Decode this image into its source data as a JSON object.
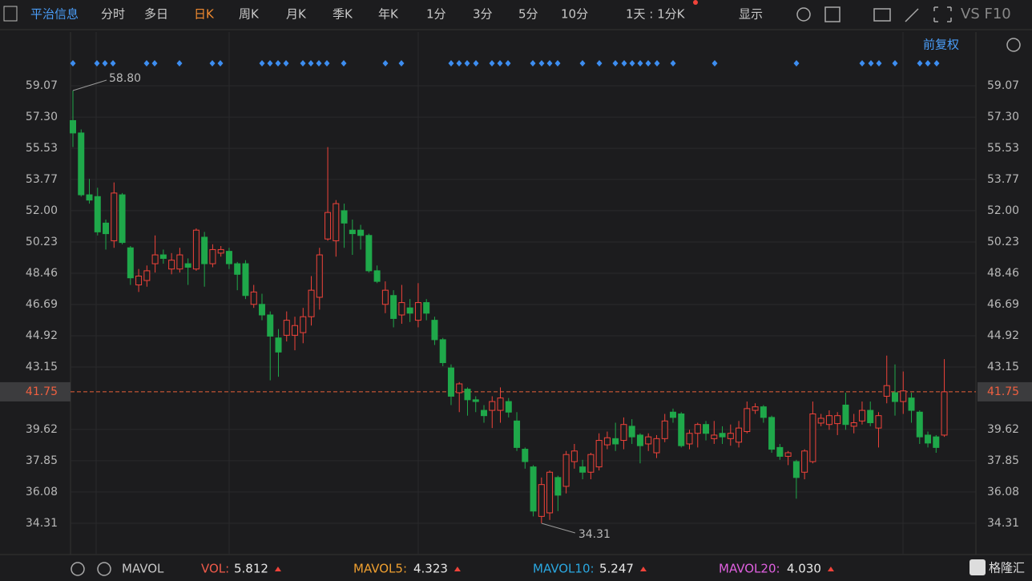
{
  "toolbar": {
    "stock": "平治信息",
    "tabs": [
      "分时",
      "多日",
      "日K",
      "周K",
      "月K",
      "季K",
      "年K",
      "1分",
      "3分",
      "5分",
      "10分"
    ],
    "active_tab": 2,
    "period": "1天 : 1分K",
    "display": "显示",
    "extras": "VS F10",
    "adjust": "前复权"
  },
  "chart_data": {
    "type": "candlestick",
    "open": [
      57.1,
      56.4,
      52.9,
      52.8,
      51.3,
      50.3,
      52.9,
      49.9,
      47.8,
      48.05,
      49.0,
      49.5,
      48.7,
      48.7,
      49.0,
      48.7,
      50.5,
      49.0,
      49.6,
      49.7,
      49.0,
      49.0,
      46.7,
      46.7,
      46.1,
      44.8,
      44.95,
      44.95,
      45.1,
      46.0,
      47.1,
      50.4,
      50.3,
      52.0,
      50.9,
      50.9,
      50.6,
      48.6,
      46.7,
      47.2,
      46.1,
      46.5,
      45.8,
      46.8,
      45.8,
      44.7,
      43.1,
      41.7,
      41.9,
      41.3,
      40.7,
      40.7,
      40.7,
      41.2,
      40.1,
      38.5,
      37.5,
      34.7,
      34.9,
      36.9,
      36.4,
      37.8,
      37.5,
      37.2,
      37.5,
      38.75,
      39.1,
      39.0,
      39.8,
      39.3,
      38.8,
      38.3,
      39.1,
      40.6,
      40.5,
      38.8,
      39.4,
      39.9,
      39.1,
      39.4,
      39.1,
      38.9,
      39.5,
      40.7,
      40.9,
      40.3,
      38.6,
      38.1,
      37.8,
      37.2,
      37.8,
      39.98,
      39.9,
      39.95,
      41.0,
      39.8,
      40.1,
      40.7,
      39.7,
      41.5,
      41.7,
      41.2,
      41.4,
      40.6,
      39.3,
      39.2,
      39.3
    ],
    "high": [
      58.8,
      56.6,
      53.8,
      53.3,
      51.5,
      53.6,
      53.0,
      50.0,
      48.7,
      48.9,
      50.6,
      49.8,
      49.6,
      49.9,
      49.3,
      51.0,
      50.8,
      50.1,
      50.0,
      49.9,
      49.1,
      49.2,
      47.8,
      47.3,
      46.3,
      45.3,
      46.3,
      46.0,
      46.5,
      48.3,
      49.9,
      55.6,
      52.6,
      52.4,
      51.5,
      51.2,
      50.7,
      48.9,
      48.0,
      47.5,
      47.8,
      47.0,
      47.9,
      47.0,
      46.0,
      44.8,
      43.3,
      42.3,
      42.0,
      41.5,
      41.0,
      41.5,
      42.0,
      41.4,
      40.6,
      38.6,
      37.6,
      36.9,
      37.3,
      37.0,
      38.4,
      38.8,
      37.9,
      38.3,
      39.4,
      39.5,
      40.0,
      40.3,
      40.2,
      39.4,
      39.4,
      39.3,
      40.5,
      40.8,
      40.6,
      39.6,
      40.0,
      40.1,
      40.1,
      39.8,
      39.9,
      40.1,
      41.2,
      41.1,
      41.0,
      40.4,
      38.8,
      38.4,
      37.9,
      38.5,
      41.2,
      40.5,
      40.7,
      40.6,
      41.7,
      40.5,
      41.2,
      41.2,
      40.6,
      43.8,
      43.3,
      42.9,
      41.7,
      40.7,
      39.5,
      39.3,
      43.6
    ],
    "low": [
      55.6,
      52.8,
      52.4,
      50.6,
      49.8,
      49.9,
      50.1,
      47.8,
      47.4,
      47.7,
      48.5,
      49.0,
      48.4,
      48.5,
      47.8,
      48.6,
      47.7,
      48.8,
      49.4,
      48.7,
      47.5,
      47.0,
      46.5,
      45.8,
      42.4,
      42.6,
      44.6,
      44.1,
      44.5,
      45.5,
      46.4,
      50.3,
      49.4,
      49.9,
      49.5,
      49.8,
      48.5,
      47.9,
      46.2,
      45.4,
      45.6,
      45.7,
      45.4,
      45.8,
      44.4,
      43.2,
      41.0,
      40.6,
      40.4,
      40.6,
      40.0,
      39.7,
      40.0,
      40.3,
      38.4,
      37.4,
      34.7,
      34.31,
      34.5,
      35.0,
      36.0,
      37.4,
      36.8,
      36.8,
      37.3,
      38.5,
      38.4,
      38.5,
      38.8,
      37.7,
      38.4,
      38.0,
      38.9,
      40.0,
      38.6,
      38.5,
      38.6,
      39.0,
      38.8,
      38.8,
      38.7,
      38.6,
      39.4,
      40.5,
      40.0,
      38.3,
      37.9,
      37.6,
      35.7,
      36.8,
      37.7,
      39.8,
      39.6,
      39.3,
      39.6,
      39.4,
      39.9,
      39.8,
      38.6,
      41.1,
      40.4,
      40.5,
      40.0,
      38.8,
      38.6,
      38.3,
      39.2
    ],
    "close": [
      56.4,
      52.9,
      52.6,
      50.8,
      50.7,
      53.0,
      50.2,
      48.2,
      48.3,
      48.6,
      49.5,
      49.3,
      49.2,
      49.5,
      48.8,
      50.9,
      49.0,
      49.8,
      49.8,
      49.0,
      48.4,
      47.2,
      47.4,
      46.1,
      44.9,
      44.0,
      45.8,
      45.5,
      46.0,
      47.5,
      49.5,
      51.9,
      52.4,
      51.3,
      50.7,
      50.6,
      48.6,
      48.0,
      47.5,
      45.9,
      46.8,
      46.2,
      46.8,
      46.2,
      44.7,
      43.4,
      41.5,
      42.2,
      41.3,
      41.2,
      40.4,
      41.2,
      41.4,
      40.6,
      38.6,
      37.8,
      35.0,
      36.5,
      37.2,
      35.9,
      38.2,
      38.4,
      37.2,
      38.2,
      39.0,
      39.15,
      38.8,
      39.9,
      39.2,
      38.7,
      39.2,
      39.1,
      40.1,
      40.3,
      38.7,
      39.4,
      39.9,
      39.4,
      39.3,
      39.2,
      39.4,
      39.7,
      40.8,
      40.9,
      40.3,
      38.5,
      38.1,
      38.3,
      36.9,
      38.4,
      40.5,
      40.25,
      40.4,
      40.4,
      39.9,
      40.0,
      40.7,
      40.0,
      40.4,
      42.1,
      41.2,
      41.8,
      40.7,
      39.2,
      38.85,
      38.6,
      41.75
    ],
    "up_color": "#f0433a",
    "down_color": "#1fa84a",
    "ylim": [
      32.63,
      60.75
    ],
    "yticks": [
      59.07,
      {
        "value": 57.3,
        "label": "57.30"
      },
      55.53,
      53.77,
      {
        "value": 52.0,
        "label": "52.00"
      },
      50.23,
      48.46,
      46.69,
      44.92,
      43.15,
      39.62,
      37.85,
      36.08,
      34.31
    ],
    "last_price": 41.75,
    "high_label": {
      "value": 58.8,
      "label": "58.80"
    },
    "low_label": {
      "value": 34.31,
      "label": "34.31"
    },
    "grid": true
  },
  "indicator_bar": {
    "name": "MAVOL",
    "items": [
      {
        "name": "VOL:",
        "value": "5.812",
        "color": "#f05a4a"
      },
      {
        "name": "MAVOL5:",
        "value": "4.323",
        "color": "#f0a030"
      },
      {
        "name": "MAVOL10:",
        "value": "5.247",
        "color": "#2aa7e0"
      },
      {
        "name": "MAVOL20:",
        "value": "4.030",
        "color": "#e060e0"
      }
    ]
  },
  "logo": "格隆汇"
}
